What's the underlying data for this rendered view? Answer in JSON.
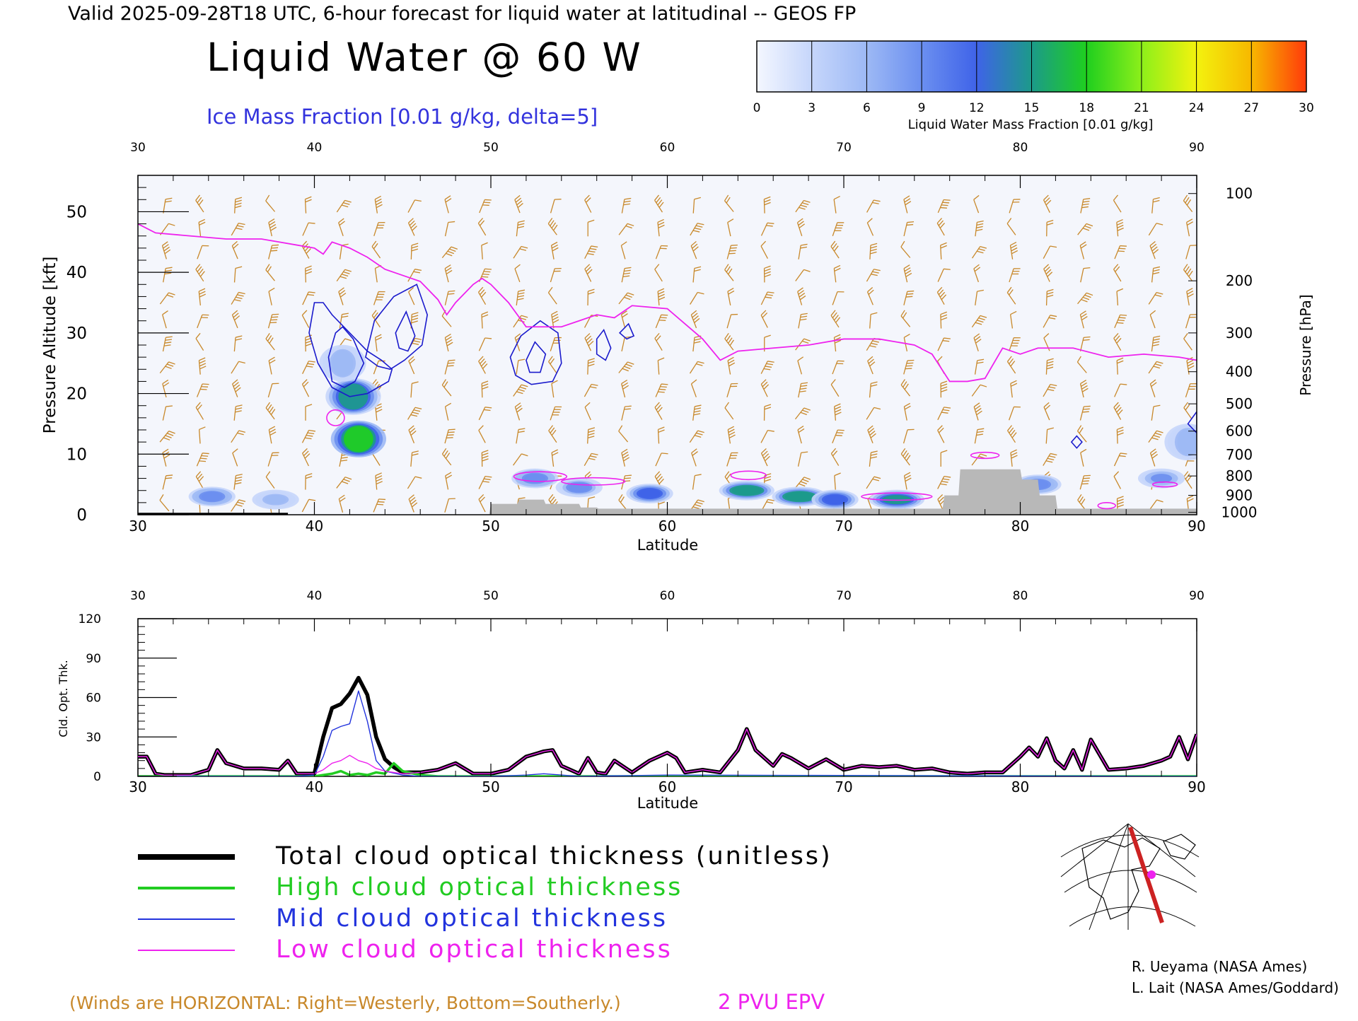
{
  "header": {
    "valid_line": "Valid 2025-09-28T18 UTC, 6-hour forecast for liquid water at latitudinal -- GEOS FP",
    "title": "Liquid Water @ 60 W",
    "ice_label": "Ice Mass Fraction [0.01 g/kg, delta=5]"
  },
  "colorbar": {
    "label": "Liquid Water Mass Fraction [0.01 g/kg]",
    "ticks": [
      "0",
      "3",
      "6",
      "9",
      "12",
      "15",
      "18",
      "21",
      "24",
      "27",
      "30"
    ],
    "colors": [
      "#f4f7ff",
      "#c6d6fb",
      "#9db9f5",
      "#6b8ff0",
      "#3f63e8",
      "#1c9a8a",
      "#1fcf1f",
      "#8cef1a",
      "#f3f20e",
      "#f7b800",
      "#ff3a0a"
    ]
  },
  "footer": {
    "winds_note": "(Winds are HORIZONTAL: Right=Westerly, Bottom=Southerly.)",
    "epv_label": "2 PVU EPV",
    "credit1": "R. Ueyama (NASA Ames)",
    "credit2": "L. Lait (NASA Ames/Goddard)"
  },
  "colors": {
    "black": "#000000",
    "wind": "#c8882a",
    "ice": "#1a1acc",
    "epv": "#ee22ee",
    "high": "#22cc22",
    "mid": "#2233dd",
    "low": "#ee22ee",
    "terrain": "#b8b8b8"
  },
  "chart_data": [
    {
      "type": "heatmap",
      "title": "Liquid Water @ 60 W",
      "xlabel": "Latitude",
      "ylabel": "Pressure Altitude [kft]",
      "y2label": "Pressure [hPa]",
      "xlim": [
        30,
        90
      ],
      "ylim": [
        0,
        56
      ],
      "x_ticks": [
        "30",
        "40",
        "50",
        "60",
        "70",
        "80",
        "90"
      ],
      "y_ticks": [
        "0",
        "10",
        "20",
        "30",
        "40",
        "50"
      ],
      "pressure_ticks": [
        {
          "label": "100",
          "alt": 53
        },
        {
          "label": "200",
          "alt": 38.6
        },
        {
          "label": "300",
          "alt": 30
        },
        {
          "label": "400",
          "alt": 23.6
        },
        {
          "label": "500",
          "alt": 18.3
        },
        {
          "label": "600",
          "alt": 13.8
        },
        {
          "label": "700",
          "alt": 9.9
        },
        {
          "label": "800",
          "alt": 6.4
        },
        {
          "label": "900",
          "alt": 3.2
        },
        {
          "label": "1000",
          "alt": 0.4
        }
      ],
      "epv_line": {
        "lat": [
          30,
          31,
          33,
          35,
          37,
          38,
          39,
          40,
          40.5,
          41,
          42,
          43,
          44,
          45,
          46,
          47,
          47.5,
          48,
          49,
          49.5,
          50,
          51,
          52,
          53,
          54,
          55,
          56,
          57,
          58,
          60,
          62,
          63,
          64,
          66,
          68,
          70,
          72,
          74,
          75,
          76,
          77,
          78,
          79,
          80,
          81,
          83,
          85,
          87,
          89,
          90
        ],
        "alt": [
          48,
          46.5,
          46,
          45.5,
          45.5,
          45,
          44.5,
          44,
          43,
          45,
          44,
          42.5,
          40.5,
          39.5,
          38.5,
          35.5,
          33,
          35,
          38,
          39,
          38,
          35,
          31,
          31,
          31,
          32,
          33,
          32.5,
          34.5,
          34,
          29,
          25.5,
          27,
          27.5,
          28,
          29,
          29,
          28,
          26.5,
          22,
          22,
          22.5,
          27.5,
          26.5,
          27.5,
          27.5,
          26,
          26.5,
          26,
          25.5
        ]
      },
      "liquid_blobs": [
        {
          "lat": 42.2,
          "alt": 19.5,
          "value": 15
        },
        {
          "lat": 42.5,
          "alt": 12.5,
          "value": 19
        },
        {
          "lat": 41.6,
          "alt": 25.0,
          "value": 6
        },
        {
          "lat": 34.2,
          "alt": 3.0,
          "value": 10
        },
        {
          "lat": 37.8,
          "alt": 2.5,
          "value": 6
        },
        {
          "lat": 52.5,
          "alt": 6.0,
          "value": 10
        },
        {
          "lat": 55.0,
          "alt": 4.5,
          "value": 9
        },
        {
          "lat": 59.0,
          "alt": 3.5,
          "value": 13
        },
        {
          "lat": 64.5,
          "alt": 4.0,
          "value": 16
        },
        {
          "lat": 67.5,
          "alt": 3.0,
          "value": 16
        },
        {
          "lat": 69.5,
          "alt": 2.5,
          "value": 13
        },
        {
          "lat": 73.0,
          "alt": 2.5,
          "value": 15
        },
        {
          "lat": 81.0,
          "alt": 5.0,
          "value": 10
        },
        {
          "lat": 88.0,
          "alt": 6.0,
          "value": 8
        },
        {
          "lat": 89.5,
          "alt": 12.0,
          "value": 6
        }
      ],
      "ice_contours": [
        {
          "lat": [
            40,
            39.7,
            40.2,
            41,
            42,
            43,
            43.6,
            44.2,
            44.4,
            43.8,
            43,
            42,
            41,
            40.5
          ],
          "alt": [
            35,
            30,
            25,
            21,
            19.5,
            20,
            21,
            22,
            24,
            25.5,
            27,
            30,
            33,
            35
          ]
        },
        {
          "lat": [
            41.2,
            40.8,
            41,
            41.7,
            42.3,
            42.8,
            42.2,
            41.6
          ],
          "alt": [
            30,
            26,
            22,
            21,
            22,
            25,
            29,
            31
          ]
        },
        {
          "lat": [
            42.9,
            43.4,
            44.5,
            45.8,
            46.4,
            46.1,
            45.1,
            44.3,
            43.6
          ],
          "alt": [
            26,
            32,
            36,
            38,
            33,
            28,
            25.5,
            24,
            24.5
          ]
        },
        {
          "lat": [
            44.6,
            45.2,
            45.7,
            45.3,
            44.8
          ],
          "alt": [
            30,
            33.5,
            29.5,
            27,
            27.5
          ]
        },
        {
          "lat": [
            51.1,
            51.7,
            52.8,
            53.8,
            54.0,
            53.5,
            52.3,
            51.4
          ],
          "alt": [
            26,
            29.5,
            32,
            30,
            25,
            22,
            21.5,
            23
          ]
        },
        {
          "lat": [
            52.0,
            52.5,
            53.1,
            52.8,
            52.2
          ],
          "alt": [
            25.5,
            28.5,
            26.5,
            23.5,
            23.5
          ]
        },
        {
          "lat": [
            56.0,
            56.4,
            56.8,
            56.5,
            56.0
          ],
          "alt": [
            29,
            30.5,
            27.5,
            25.5,
            26.5
          ]
        },
        {
          "lat": [
            57.3,
            57.8,
            58.1,
            57.7
          ],
          "alt": [
            30,
            31.5,
            29.5,
            29
          ]
        },
        {
          "lat": [
            82.9,
            83.2,
            83.5,
            83.2
          ],
          "alt": [
            12,
            13,
            12,
            11
          ]
        },
        {
          "lat": [
            89.5,
            90,
            90
          ],
          "alt": [
            15,
            17,
            13.5
          ]
        }
      ],
      "epv_blobs": [
        {
          "lat": 41.2,
          "alt": 16,
          "rx": 0.5,
          "ry": 1.3
        },
        {
          "lat": 52.8,
          "alt": 6.3,
          "rx": 1.5,
          "ry": 0.8
        },
        {
          "lat": 55.8,
          "alt": 5.5,
          "rx": 1.8,
          "ry": 0.6
        },
        {
          "lat": 64.6,
          "alt": 6.5,
          "rx": 1.0,
          "ry": 0.7
        },
        {
          "lat": 73.0,
          "alt": 3.0,
          "rx": 2.0,
          "ry": 0.6
        },
        {
          "lat": 78.0,
          "alt": 9.8,
          "rx": 0.8,
          "ry": 0.5
        },
        {
          "lat": 84.9,
          "alt": 1.5,
          "rx": 0.5,
          "ry": 0.5
        },
        {
          "lat": 88.2,
          "alt": 5.0,
          "rx": 0.7,
          "ry": 0.4
        }
      ],
      "terrain": {
        "lat": [
          30,
          30.1,
          31.8,
          31.9,
          49.9,
          50,
          51.5,
          51.6,
          53,
          53.1,
          55,
          55.1,
          56,
          56.1,
          75.6,
          75.7,
          76.5,
          76.6,
          80,
          80.1,
          81,
          81.1,
          82,
          82.1,
          90
        ],
        "alt": [
          0,
          0.3,
          0.3,
          0,
          0,
          1.8,
          1.8,
          2.5,
          2.5,
          1.8,
          1.8,
          1.2,
          1.2,
          1.0,
          1.0,
          3.2,
          3.2,
          7.5,
          7.5,
          5.8,
          5.8,
          3.2,
          3.2,
          1.0,
          1.0
        ]
      }
    },
    {
      "type": "line",
      "xlabel": "Latitude",
      "ylabel": "Cld. Opt. Thk.",
      "xlim": [
        30,
        90
      ],
      "ylim": [
        0,
        120
      ],
      "x_ticks": [
        "30",
        "40",
        "50",
        "60",
        "70",
        "80",
        "90"
      ],
      "y_ticks": [
        "0",
        "30",
        "60",
        "90",
        "120"
      ],
      "series": [
        {
          "name": "Total cloud optical thickness (unitless)",
          "x": [
            30,
            30.5,
            31,
            31.5,
            32,
            33,
            34,
            34.5,
            35,
            35.5,
            36,
            37,
            38,
            38.5,
            39,
            40,
            40.5,
            41,
            41.5,
            42,
            42.5,
            43,
            43.5,
            44,
            44.5,
            45,
            46,
            47,
            48,
            49,
            50,
            51,
            52,
            53,
            53.5,
            54,
            55,
            55.5,
            56,
            56.5,
            57,
            58,
            59,
            60,
            60.5,
            61,
            62,
            63,
            64,
            64.5,
            65,
            66,
            66.5,
            67,
            68,
            69,
            70,
            71,
            72,
            73,
            74,
            75,
            76,
            77,
            78,
            79,
            80,
            80.5,
            81,
            81.5,
            82,
            82.5,
            83,
            83.5,
            84,
            85,
            86,
            87,
            88,
            88.5,
            89,
            89.5,
            90
          ],
          "y": [
            15,
            15,
            2,
            1,
            1,
            1,
            5,
            20,
            10,
            8,
            6,
            6,
            5,
            12,
            2,
            2,
            30,
            52,
            55,
            63,
            75,
            62,
            30,
            13,
            7,
            3,
            3,
            5,
            10,
            2,
            2,
            5,
            15,
            19,
            20,
            8,
            2,
            14,
            3,
            2,
            12,
            3,
            12,
            18,
            14,
            3,
            5,
            3,
            20,
            36,
            20,
            8,
            17,
            14,
            6,
            13,
            5,
            8,
            7,
            8,
            5,
            6,
            3,
            2,
            3,
            3,
            15,
            22,
            15,
            29,
            12,
            6,
            20,
            5,
            28,
            5,
            6,
            8,
            12,
            15,
            30,
            13,
            32
          ]
        },
        {
          "name": "High cloud optical thickness",
          "x": [
            30,
            39,
            40,
            41,
            41.5,
            42,
            42.5,
            43,
            43.5,
            44,
            44.5,
            45,
            46,
            47,
            60,
            90
          ],
          "y": [
            0,
            0,
            0,
            2,
            4,
            1,
            2,
            1,
            3,
            2,
            10,
            4,
            1,
            0,
            0,
            0
          ]
        },
        {
          "name": "Mid cloud optical thickness",
          "x": [
            30,
            39,
            40,
            40.5,
            41,
            41.5,
            42,
            42.5,
            43,
            43.5,
            44,
            45,
            46,
            50,
            52,
            53,
            55,
            60,
            90
          ],
          "y": [
            0,
            0,
            1,
            15,
            35,
            38,
            40,
            65,
            42,
            12,
            4,
            1,
            0,
            0,
            1,
            2,
            0,
            1,
            0
          ]
        },
        {
          "name": "Low cloud optical thickness",
          "x": [
            30,
            30.5,
            31,
            31.5,
            32,
            33,
            34,
            34.5,
            35,
            35.5,
            36,
            37,
            38,
            38.5,
            39,
            40,
            40.5,
            41,
            41.5,
            42,
            42.5,
            43,
            43.5,
            44,
            44.5,
            45,
            46,
            47,
            48,
            49,
            50,
            51,
            52,
            53,
            53.5,
            54,
            55,
            55.5,
            56,
            56.5,
            57,
            58,
            59,
            60,
            60.5,
            61,
            62,
            63,
            64,
            64.5,
            65,
            66,
            66.5,
            67,
            68,
            69,
            70,
            71,
            72,
            73,
            74,
            75,
            76,
            77,
            78,
            79,
            80,
            80.5,
            81,
            81.5,
            82,
            82.5,
            83,
            83.5,
            84,
            85,
            86,
            87,
            88,
            88.5,
            89,
            89.5,
            90
          ],
          "y": [
            15,
            15,
            2,
            1,
            1,
            1,
            5,
            20,
            10,
            8,
            6,
            6,
            5,
            12,
            2,
            2,
            5,
            10,
            12,
            16,
            12,
            10,
            6,
            4,
            3,
            2,
            3,
            5,
            10,
            2,
            2,
            5,
            15,
            19,
            20,
            8,
            2,
            14,
            3,
            2,
            12,
            3,
            12,
            18,
            14,
            3,
            5,
            3,
            20,
            36,
            20,
            8,
            17,
            14,
            6,
            13,
            5,
            8,
            7,
            8,
            5,
            6,
            3,
            2,
            3,
            3,
            15,
            22,
            15,
            29,
            12,
            6,
            20,
            5,
            28,
            5,
            6,
            8,
            12,
            15,
            30,
            13,
            32
          ]
        }
      ]
    }
  ]
}
